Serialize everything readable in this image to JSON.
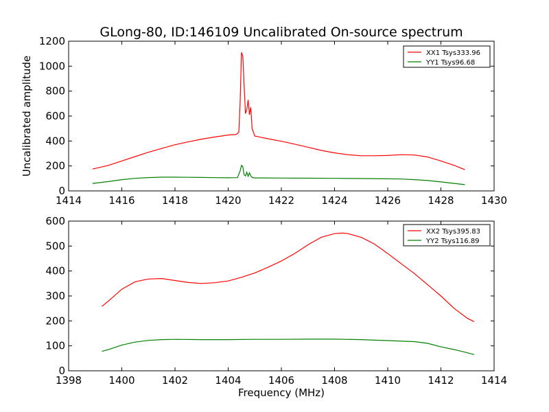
{
  "title": "GLong-80, ID:146109 Uncalibrated On-source spectrum",
  "colors": {
    "red": "#ff0000",
    "green": "#007f00",
    "axes": "#000000"
  },
  "chart_data": [
    {
      "type": "line",
      "ylabel": "Uncalibrated amplitude",
      "xlabel": "",
      "xlim": [
        1414,
        1430
      ],
      "ylim": [
        0,
        1200
      ],
      "xticks": [
        1414,
        1416,
        1418,
        1420,
        1422,
        1424,
        1426,
        1428,
        1430
      ],
      "yticks": [
        0,
        200,
        400,
        600,
        800,
        1000,
        1200
      ],
      "legend_position": "top-right",
      "series": [
        {
          "name": "XX1 Tsys333.96",
          "color": "#ff0000",
          "points": [
            [
              1414.9,
              175
            ],
            [
              1415.5,
              205
            ],
            [
              1416,
              240
            ],
            [
              1416.5,
              275
            ],
            [
              1417,
              310
            ],
            [
              1417.5,
              340
            ],
            [
              1418,
              370
            ],
            [
              1418.5,
              393
            ],
            [
              1419,
              415
            ],
            [
              1419.5,
              432
            ],
            [
              1420,
              448
            ],
            [
              1420.3,
              452
            ],
            [
              1420.4,
              470
            ],
            [
              1420.45,
              700
            ],
            [
              1420.5,
              1110
            ],
            [
              1420.55,
              1080
            ],
            [
              1420.6,
              850
            ],
            [
              1420.65,
              620
            ],
            [
              1420.7,
              650
            ],
            [
              1420.75,
              730
            ],
            [
              1420.8,
              610
            ],
            [
              1420.85,
              670
            ],
            [
              1420.9,
              500
            ],
            [
              1420.95,
              470
            ],
            [
              1421.0,
              440
            ],
            [
              1421.5,
              418
            ],
            [
              1422,
              398
            ],
            [
              1422.5,
              375
            ],
            [
              1423,
              350
            ],
            [
              1423.5,
              325
            ],
            [
              1424,
              305
            ],
            [
              1424.5,
              290
            ],
            [
              1425,
              282
            ],
            [
              1425.5,
              282
            ],
            [
              1426,
              284
            ],
            [
              1426.5,
              290
            ],
            [
              1427,
              288
            ],
            [
              1427.5,
              272
            ],
            [
              1428,
              240
            ],
            [
              1428.5,
              205
            ],
            [
              1428.9,
              170
            ]
          ]
        },
        {
          "name": "YY1 Tsys96.68",
          "color": "#007f00",
          "points": [
            [
              1414.9,
              60
            ],
            [
              1415.5,
              75
            ],
            [
              1416,
              90
            ],
            [
              1416.5,
              101
            ],
            [
              1417,
              107
            ],
            [
              1417.5,
              110
            ],
            [
              1418,
              110
            ],
            [
              1418.5,
              109
            ],
            [
              1419,
              108
            ],
            [
              1419.5,
              106
            ],
            [
              1420,
              105
            ],
            [
              1420.35,
              106
            ],
            [
              1420.45,
              160
            ],
            [
              1420.5,
              205
            ],
            [
              1420.55,
              195
            ],
            [
              1420.6,
              130
            ],
            [
              1420.65,
              120
            ],
            [
              1420.7,
              150
            ],
            [
              1420.75,
              118
            ],
            [
              1420.8,
              145
            ],
            [
              1420.85,
              120
            ],
            [
              1420.9,
              108
            ],
            [
              1421,
              104
            ],
            [
              1422,
              103
            ],
            [
              1423,
              102
            ],
            [
              1424,
              101
            ],
            [
              1425,
              99
            ],
            [
              1426,
              97
            ],
            [
              1426.5,
              95
            ],
            [
              1427,
              90
            ],
            [
              1427.5,
              83
            ],
            [
              1428,
              72
            ],
            [
              1428.5,
              60
            ],
            [
              1428.9,
              50
            ]
          ]
        }
      ]
    },
    {
      "type": "line",
      "ylabel": "",
      "xlabel": "Frequency (MHz)",
      "xlim": [
        1398,
        1414
      ],
      "ylim": [
        0,
        600
      ],
      "xticks": [
        1398,
        1400,
        1402,
        1404,
        1406,
        1408,
        1410,
        1412,
        1414
      ],
      "yticks": [
        0,
        100,
        200,
        300,
        400,
        500,
        600
      ],
      "legend_position": "top-right",
      "series": [
        {
          "name": "XX2 Tsys395.83",
          "color": "#ff0000",
          "points": [
            [
              1399.25,
              258
            ],
            [
              1399.5,
              280
            ],
            [
              1400,
              327
            ],
            [
              1400.5,
              357
            ],
            [
              1401,
              368
            ],
            [
              1401.5,
              370
            ],
            [
              1402,
              362
            ],
            [
              1402.5,
              354
            ],
            [
              1403,
              350
            ],
            [
              1403.5,
              353
            ],
            [
              1404,
              360
            ],
            [
              1404.5,
              375
            ],
            [
              1405,
              392
            ],
            [
              1405.5,
              415
            ],
            [
              1406,
              440
            ],
            [
              1406.5,
              470
            ],
            [
              1407,
              505
            ],
            [
              1407.5,
              535
            ],
            [
              1408,
              550
            ],
            [
              1408.3,
              552
            ],
            [
              1408.5,
              550
            ],
            [
              1409,
              535
            ],
            [
              1409.5,
              508
            ],
            [
              1410,
              470
            ],
            [
              1410.5,
              430
            ],
            [
              1411,
              390
            ],
            [
              1411.5,
              345
            ],
            [
              1412,
              300
            ],
            [
              1412.5,
              250
            ],
            [
              1413,
              210
            ],
            [
              1413.25,
              197
            ]
          ]
        },
        {
          "name": "YY2 Tsys116.89",
          "color": "#007f00",
          "points": [
            [
              1399.25,
              78
            ],
            [
              1399.5,
              85
            ],
            [
              1400,
              103
            ],
            [
              1400.5,
              115
            ],
            [
              1401,
              122
            ],
            [
              1401.5,
              125
            ],
            [
              1402,
              126
            ],
            [
              1403,
              125
            ],
            [
              1404,
              125
            ],
            [
              1405,
              126
            ],
            [
              1406,
              126
            ],
            [
              1407,
              127
            ],
            [
              1408,
              127
            ],
            [
              1409,
              125
            ],
            [
              1410,
              121
            ],
            [
              1411,
              117
            ],
            [
              1411.5,
              110
            ],
            [
              1412,
              96
            ],
            [
              1412.5,
              85
            ],
            [
              1413,
              72
            ],
            [
              1413.25,
              65
            ]
          ]
        }
      ]
    }
  ]
}
